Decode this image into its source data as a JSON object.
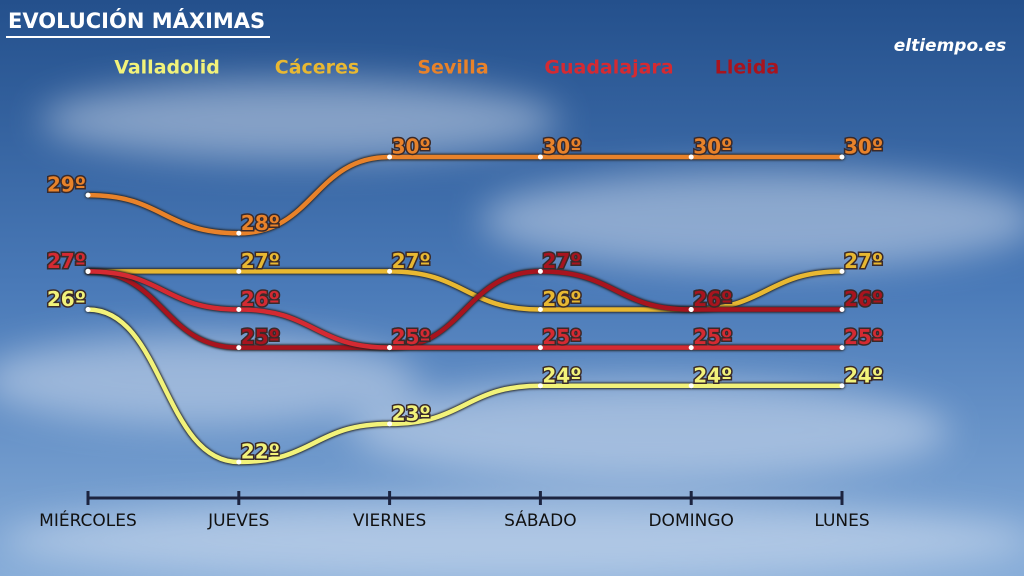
{
  "chart_data": {
    "type": "line",
    "title": "EVOLUCIÓN MÁXIMAS",
    "logo": "eltiempo.es",
    "categories": [
      "MIÉRCOLES",
      "JUEVES",
      "VIERNES",
      "SÁBADO",
      "DOMINGO",
      "LUNES"
    ],
    "series": [
      {
        "name": "Sevilla",
        "color": "#e8822a",
        "values": [
          29,
          28,
          30,
          30,
          30,
          30
        ],
        "value_labels": [
          "29º",
          "28º",
          "30º",
          "30º",
          "30º",
          "30º"
        ]
      },
      {
        "name": "Valladolid",
        "color": "#f2f27a",
        "values": [
          26,
          22,
          23,
          24,
          24,
          24
        ],
        "value_labels": [
          "26º",
          "22º",
          "23º",
          "24º",
          "24º",
          "24º"
        ]
      },
      {
        "name": "Cáceres",
        "color": "#e8b832",
        "values": [
          27,
          27,
          27,
          26,
          26,
          27
        ],
        "value_labels": [
          "27º",
          "27º",
          "27º",
          "26º",
          "26º",
          "27º"
        ]
      },
      {
        "name": "Lleida",
        "color": "#a8141e",
        "values": [
          27,
          25,
          25,
          27,
          26,
          26
        ],
        "value_labels": [
          "27º",
          "25º",
          "25º",
          "27º",
          "26º",
          "26º"
        ]
      },
      {
        "name": "Guadalajara",
        "color": "#d42a32",
        "values": [
          27,
          26,
          25,
          25,
          25,
          25
        ],
        "value_labels": [
          "27º",
          "26º",
          "25º",
          "25º",
          "25º",
          "25º"
        ]
      }
    ]
  }
}
